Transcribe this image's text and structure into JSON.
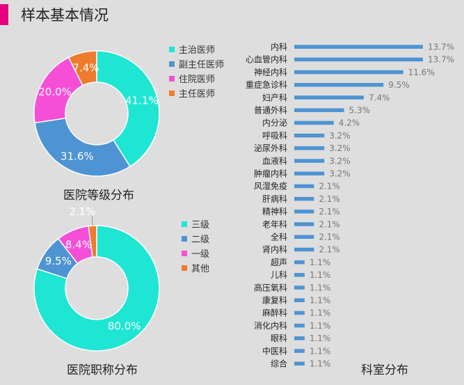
{
  "header": {
    "title": "样本基本情况",
    "accent": "#e4007f"
  },
  "colors": [
    "#1fe6d3",
    "#4e94d3",
    "#f54fd8",
    "#ef7c2e"
  ],
  "chart_data": [
    {
      "type": "pie",
      "donut": true,
      "title": "医院等级分布",
      "categories": [
        "主治医师",
        "副主任医师",
        "住院医师",
        "主任医师"
      ],
      "values": [
        41.1,
        31.6,
        20.0,
        7.4
      ],
      "labels": [
        "41.1%",
        "31.6%",
        "20.0%",
        "7.4%"
      ],
      "legend": "right"
    },
    {
      "type": "pie",
      "donut": true,
      "title": "医院职称分布",
      "categories": [
        "三级",
        "二级",
        "一级",
        "其他"
      ],
      "values": [
        80.0,
        9.5,
        8.4,
        2.1
      ],
      "labels": [
        "80.0%",
        "9.5%",
        "8.4%",
        "2.1%"
      ],
      "legend": "right"
    },
    {
      "type": "bar",
      "orientation": "horizontal",
      "title": "科室分布",
      "color": "#4e94d3",
      "categories": [
        "内科",
        "心血管内科",
        "神经内科",
        "重症急诊科",
        "妇产科",
        "普通外科",
        "内分泌",
        "呼吸科",
        "泌尿外科",
        "血液科",
        "肿瘤内科",
        "风湿免疫",
        "肝病科",
        "精神科",
        "老年科",
        "全科",
        "肾内科",
        "超声",
        "儿科",
        "高压氧科",
        "康复科",
        "麻醉科",
        "消化内科",
        "眼科",
        "中医科",
        "综合"
      ],
      "values": [
        13.7,
        13.7,
        11.6,
        9.5,
        7.4,
        5.3,
        4.2,
        3.2,
        3.2,
        3.2,
        3.2,
        2.1,
        2.1,
        2.1,
        2.1,
        2.1,
        2.1,
        1.1,
        1.1,
        1.1,
        1.1,
        1.1,
        1.1,
        1.1,
        1.1,
        1.1
      ],
      "labels": [
        "13.7%",
        "13.7%",
        "11.6%",
        "9.5%",
        "7.4%",
        "5.3%",
        "4.2%",
        "3.2%",
        "3.2%",
        "3.2%",
        "3.2%",
        "2.1%",
        "2.1%",
        "2.1%",
        "2.1%",
        "2.1%",
        "2.1%",
        "1.1%",
        "1.1%",
        "1.1%",
        "1.1%",
        "1.1%",
        "1.1%",
        "1.1%",
        "1.1%",
        "1.1%"
      ]
    }
  ]
}
